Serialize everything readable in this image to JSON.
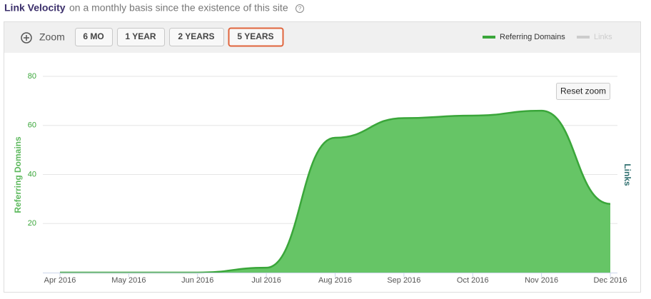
{
  "header": {
    "title": "Link Velocity",
    "subtitle": "on a monthly basis since the existence of this site"
  },
  "toolbar": {
    "zoom": "Zoom",
    "buttons": [
      "6 MO",
      "1 YEAR",
      "2 YEARS",
      "5 YEARS"
    ],
    "selected": 3,
    "reset": "Reset zoom"
  },
  "chart_data": {
    "type": "area",
    "y_label": "Referring Domains",
    "y2_label": "Links",
    "categories": [
      "Apr 2016",
      "May 2016",
      "Jun 2016",
      "Jul 2016",
      "Aug 2016",
      "Sep 2016",
      "Oct 2016",
      "Nov 2016",
      "Dec 2016"
    ],
    "series": [
      {
        "name": "Referring Domains",
        "color": "#3aa63a",
        "fill": "#66c566",
        "values": [
          0,
          0,
          0,
          2,
          55,
          63,
          64,
          66,
          28
        ]
      },
      {
        "name": "Links",
        "color": "#cccccc",
        "visible": false
      }
    ],
    "ylim": [
      0,
      80
    ],
    "yticks": [
      20,
      40,
      60,
      80
    ],
    "grid": true,
    "legend": "top-right"
  }
}
